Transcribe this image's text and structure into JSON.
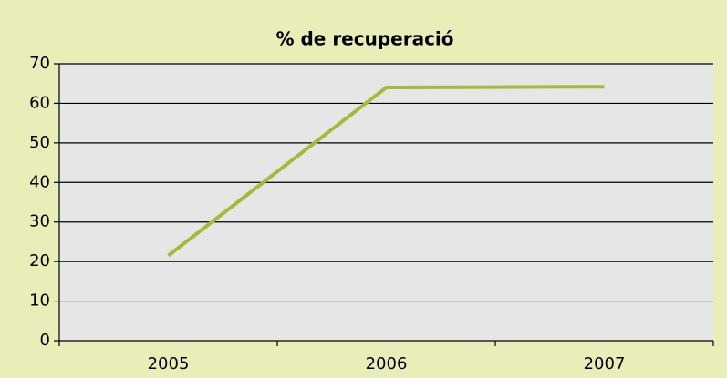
{
  "chart_data": {
    "type": "line",
    "title": "% de recuperació",
    "categories": [
      "2005",
      "2006",
      "2007"
    ],
    "series": [
      {
        "name": "% de recuperació",
        "color": "#a8b93a",
        "values": [
          21.5,
          64,
          64.2
        ]
      }
    ],
    "ylim": [
      0,
      70
    ],
    "yticks": [
      0,
      10,
      20,
      30,
      40,
      50,
      60,
      70
    ],
    "grid": true
  }
}
